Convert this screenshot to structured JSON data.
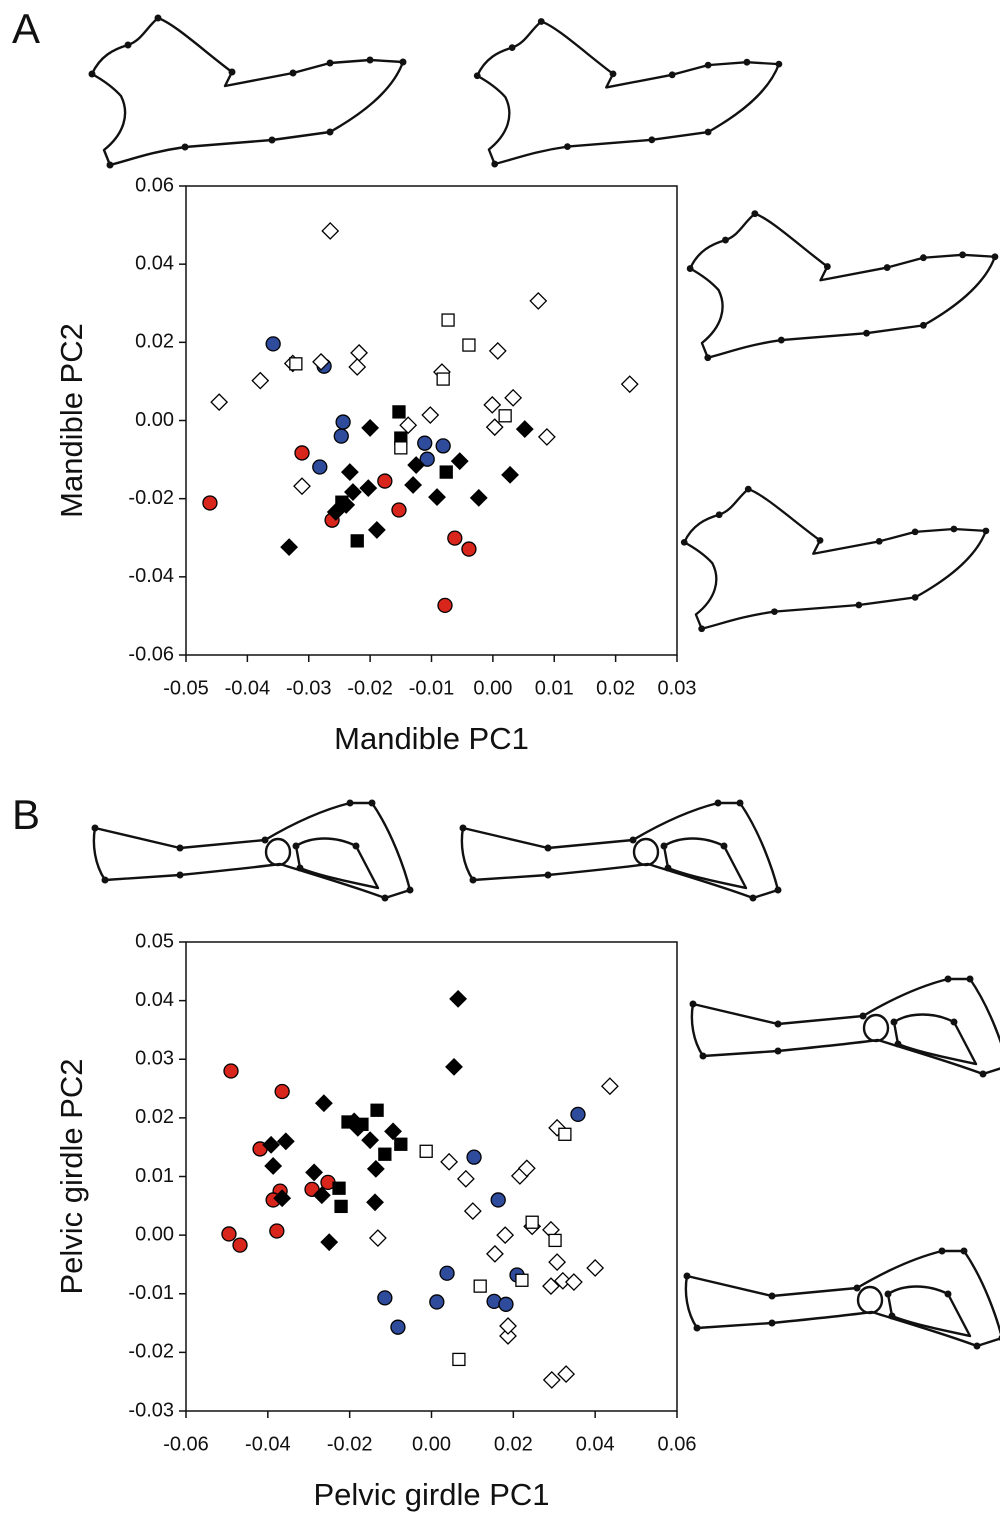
{
  "chart_data": [
    {
      "type": "scatter",
      "panel_label": "A",
      "xlabel": "Mandible PC1",
      "ylabel": "Mandible PC2",
      "xlim": [
        -0.05,
        0.03
      ],
      "ylim": [
        -0.06,
        0.06
      ],
      "xticks": [
        -0.05,
        -0.04,
        -0.03,
        -0.02,
        -0.01,
        {
          "value": 0,
          "label": "0.00"
        },
        0.01,
        0.02,
        0.03
      ],
      "yticks": [
        -0.06,
        -0.04,
        -0.02,
        {
          "value": 0,
          "label": "0.00"
        },
        0.02,
        0.04,
        0.06
      ],
      "series": [
        {
          "marker": "circle",
          "color": "#d9261c",
          "x": [
            -0.0461,
            -0.0311,
            -0.0176,
            -0.0153,
            -0.0262,
            -0.0062,
            -0.0039,
            -0.0078
          ],
          "y": [
            -0.0211,
            -0.0083,
            -0.0155,
            -0.0229,
            -0.0255,
            -0.0301,
            -0.0329,
            -0.0473
          ]
        },
        {
          "marker": "circle",
          "color": "#2e4b9c",
          "x": [
            -0.0358,
            -0.0275,
            -0.0244,
            -0.0247,
            -0.0282,
            -0.0111,
            -0.0081,
            -0.0107
          ],
          "y": [
            0.0196,
            0.0139,
            -0.0004,
            -0.004,
            -0.0119,
            -0.0058,
            -0.0065,
            -0.0099
          ]
        },
        {
          "marker": "diamond",
          "color": "#000000",
          "x": [
            -0.0332,
            -0.0256,
            -0.02,
            -0.0233,
            -0.0228,
            -0.0203,
            -0.0189,
            -0.013,
            -0.0125,
            -0.0091,
            -0.0054,
            -0.0023,
            0.0028,
            0.0052,
            -0.0239
          ],
          "y": [
            -0.0324,
            -0.0234,
            -0.0019,
            -0.0132,
            -0.0183,
            -0.0173,
            -0.028,
            -0.0165,
            -0.0114,
            -0.0196,
            -0.0104,
            -0.0198,
            -0.0139,
            -0.0022,
            -0.0216
          ]
        },
        {
          "marker": "square",
          "color": "#000000",
          "x": [
            -0.0153,
            -0.015,
            -0.0221,
            -0.0246,
            -0.0076
          ],
          "y": [
            0.0022,
            -0.0045,
            -0.0308,
            -0.0209,
            -0.0132
          ]
        },
        {
          "marker": "diamond",
          "color": "#ffffff",
          "x": [
            -0.0265,
            -0.0446,
            -0.0379,
            -0.0326,
            -0.028,
            -0.0218,
            -0.0221,
            -0.0138,
            -0.0102,
            -0.0083,
            0.0008,
            -0.0001,
            0.0003,
            0.0033,
            0.0088,
            0.0074,
            0.0223,
            -0.0311
          ],
          "y": [
            0.0485,
            0.0047,
            0.0102,
            0.0146,
            0.015,
            0.0173,
            0.0137,
            -0.0012,
            0.0014,
            0.0124,
            0.0178,
            0.004,
            -0.0017,
            0.0058,
            -0.0042,
            0.0306,
            0.0093,
            -0.0168
          ]
        },
        {
          "marker": "square",
          "color": "#ffffff",
          "x": [
            -0.0073,
            -0.0039,
            -0.0321,
            -0.0081,
            0.002,
            -0.015
          ],
          "y": [
            0.0257,
            0.0193,
            0.0145,
            0.0106,
            0.0012,
            -0.007
          ]
        }
      ]
    },
    {
      "type": "scatter",
      "panel_label": "B",
      "xlabel": "Pelvic girdle PC1",
      "ylabel": "Pelvic girdle PC2",
      "xlim": [
        -0.06,
        0.06
      ],
      "ylim": [
        -0.03,
        0.05
      ],
      "xticks": [
        -0.06,
        -0.04,
        -0.02,
        {
          "value": 0,
          "label": "0.00"
        },
        0.02,
        0.04,
        0.06
      ],
      "yticks": [
        -0.03,
        -0.02,
        -0.01,
        {
          "value": 0,
          "label": "0.00"
        },
        0.01,
        0.02,
        0.03,
        0.04,
        0.05
      ],
      "series": [
        {
          "marker": "circle",
          "color": "#d9261c",
          "x": [
            -0.049,
            -0.0365,
            -0.0419,
            -0.037,
            -0.0387,
            -0.0292,
            -0.0378,
            -0.0495,
            -0.0468,
            -0.0253
          ],
          "y": [
            0.028,
            0.0245,
            0.0147,
            0.0075,
            0.006,
            0.0078,
            0.0007,
            0.0002,
            -0.0017,
            0.009
          ]
        },
        {
          "marker": "circle",
          "color": "#2e4b9c",
          "x": [
            0.0358,
            0.0104,
            0.0163,
            0.0038,
            -0.0114,
            0.0013,
            -0.0082,
            0.0153,
            0.0182,
            0.0209
          ],
          "y": [
            0.0206,
            0.0133,
            0.006,
            -0.0065,
            -0.0107,
            -0.0114,
            -0.0157,
            -0.0113,
            -0.0118,
            -0.0068
          ]
        },
        {
          "marker": "diamond",
          "color": "#000000",
          "x": [
            0.0065,
            0.0055,
            -0.0263,
            -0.0392,
            -0.0356,
            -0.0387,
            -0.0365,
            -0.0287,
            -0.0268,
            -0.025,
            -0.0189,
            -0.018,
            -0.0094,
            -0.0136,
            -0.015,
            -0.0138
          ],
          "y": [
            0.0403,
            0.0287,
            0.0225,
            0.0154,
            0.016,
            0.0118,
            0.0063,
            0.0107,
            0.0068,
            -0.0012,
            0.0194,
            0.0183,
            0.0177,
            0.0113,
            0.0162,
            0.0056
          ]
        },
        {
          "marker": "square",
          "color": "#000000",
          "x": [
            -0.0204,
            -0.017,
            -0.0133,
            -0.0075,
            -0.0114,
            -0.0226,
            -0.0221
          ],
          "y": [
            0.0193,
            0.0189,
            0.0213,
            0.0155,
            0.0138,
            0.008,
            0.0049
          ]
        },
        {
          "marker": "diamond",
          "color": "#ffffff",
          "x": [
            0.0436,
            -0.0131,
            0.0043,
            0.0084,
            0.0101,
            0.0155,
            0.018,
            0.0216,
            0.0233,
            0.0246,
            0.0292,
            0.0307,
            0.0292,
            0.0321,
            0.0348,
            0.04,
            0.0187,
            0.0187,
            0.0294,
            0.0329,
            0.0307
          ],
          "y": [
            0.0254,
            -0.0005,
            0.0125,
            0.0096,
            0.0041,
            -0.0032,
            0.0,
            0.0101,
            0.0114,
            0.0015,
            0.0009,
            -0.0046,
            -0.0087,
            -0.0078,
            -0.008,
            -0.0056,
            -0.0172,
            -0.0155,
            -0.0247,
            -0.0237,
            0.0183
          ]
        },
        {
          "marker": "square",
          "color": "#ffffff",
          "x": [
            -0.0013,
            0.0326,
            0.0302,
            0.0246,
            0.0221,
            0.0119,
            0.0067
          ],
          "y": [
            0.0143,
            0.0172,
            -0.0009,
            0.0022,
            -0.0077,
            -0.0087,
            -0.0212
          ]
        }
      ]
    }
  ]
}
